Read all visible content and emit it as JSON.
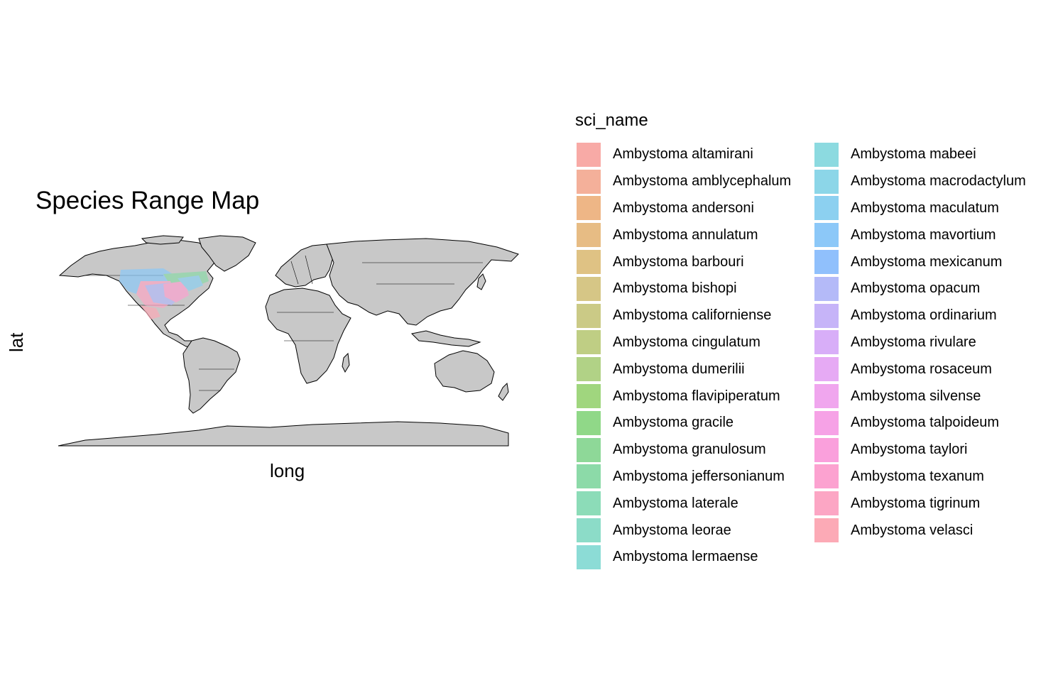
{
  "map": {
    "title": "Species Range Map",
    "xlabel": "long",
    "ylabel": "lat",
    "land_color": "#c8c8c8",
    "border_color": "#000000"
  },
  "legend": {
    "title": "sci_name",
    "placement": "right",
    "items": [
      {
        "label": "Ambystoma altamirani",
        "color": "#f8aaa6"
      },
      {
        "label": "Ambystoma amblycephalum",
        "color": "#f4b09a"
      },
      {
        "label": "Ambystoma andersoni",
        "color": "#eeb686"
      },
      {
        "label": "Ambystoma annulatum",
        "color": "#e7bc84"
      },
      {
        "label": "Ambystoma barbouri",
        "color": "#dfc284"
      },
      {
        "label": "Ambystoma bishopi",
        "color": "#d6c686"
      },
      {
        "label": "Ambystoma californiense",
        "color": "#cbca86"
      },
      {
        "label": "Ambystoma cingulatum",
        "color": "#bfce84"
      },
      {
        "label": "Ambystoma dumerilii",
        "color": "#b1d286"
      },
      {
        "label": "Ambystoma flavipiperatum",
        "color": "#a0d67e"
      },
      {
        "label": "Ambystoma gracile",
        "color": "#90d888"
      },
      {
        "label": "Ambystoma granulosum",
        "color": "#8ed898"
      },
      {
        "label": "Ambystoma jeffersonianum",
        "color": "#8cdaa8"
      },
      {
        "label": "Ambystoma laterale",
        "color": "#8cdcb8"
      },
      {
        "label": "Ambystoma leorae",
        "color": "#8cdcc8"
      },
      {
        "label": "Ambystoma lermaense",
        "color": "#8cdcd6"
      },
      {
        "label": "Ambystoma mabeei",
        "color": "#8cdae0"
      },
      {
        "label": "Ambystoma macrodactylum",
        "color": "#8cd6e8"
      },
      {
        "label": "Ambystoma maculatum",
        "color": "#8cd0f0"
      },
      {
        "label": "Ambystoma mavortium",
        "color": "#8cc8f8"
      },
      {
        "label": "Ambystoma mexicanum",
        "color": "#90c0fc"
      },
      {
        "label": "Ambystoma opacum",
        "color": "#b4baf8"
      },
      {
        "label": "Ambystoma ordinarium",
        "color": "#c6b4f8"
      },
      {
        "label": "Ambystoma rivulare",
        "color": "#d8aef8"
      },
      {
        "label": "Ambystoma rosaceum",
        "color": "#e6aaf4"
      },
      {
        "label": "Ambystoma silvense",
        "color": "#f0a6ee"
      },
      {
        "label": "Ambystoma talpoideum",
        "color": "#f6a2e6"
      },
      {
        "label": "Ambystoma taylori",
        "color": "#faa0dc"
      },
      {
        "label": "Ambystoma texanum",
        "color": "#fca2d0"
      },
      {
        "label": "Ambystoma tigrinum",
        "color": "#fca6c4"
      },
      {
        "label": "Ambystoma velasci",
        "color": "#fcaab6"
      }
    ]
  }
}
